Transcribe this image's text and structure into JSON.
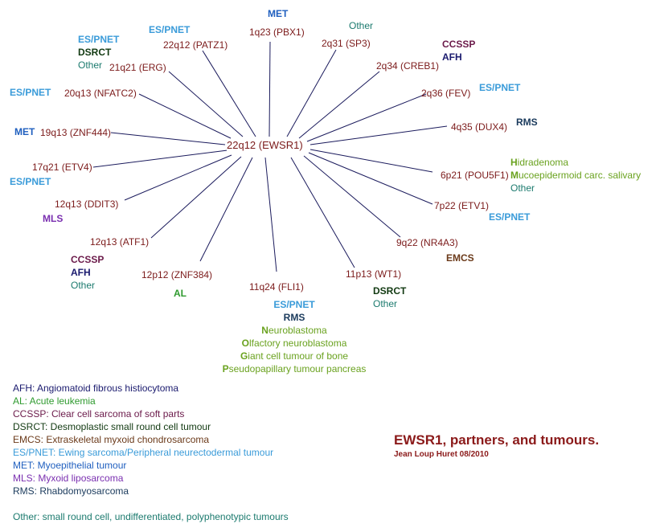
{
  "colors": {
    "MET": "#1f5fbf",
    "Other": "#1b7a6e",
    "ESPNET": "#3a9bd9",
    "DSRCT": "#123a12",
    "CCSSP": "#6b1a4a",
    "AFH": "#1a1a6e",
    "RMS": "#1a3a5c",
    "MLS": "#7a2fb0",
    "AL": "#2e9a2e",
    "EMCS": "#6b3a1a",
    "green": "#6aa21f",
    "gene": "#7b1a1a",
    "line": "#1a1a5c"
  },
  "center": "22q12 (EWSR1)",
  "partners": [
    {
      "id": "pbx1",
      "gene": "1q23 (PBX1)"
    },
    {
      "id": "sp3",
      "gene": "2q31 (SP3)"
    },
    {
      "id": "creb1",
      "gene": "2q34 (CREB1)"
    },
    {
      "id": "fev",
      "gene": "2q36 (FEV)"
    },
    {
      "id": "dux4",
      "gene": "4q35 (DUX4)"
    },
    {
      "id": "pou5f1",
      "gene": "6p21 (POU5F1)"
    },
    {
      "id": "etv1",
      "gene": "7p22 (ETV1)"
    },
    {
      "id": "nr4a3",
      "gene": "9q22 (NR4A3)"
    },
    {
      "id": "wt1",
      "gene": "11p13 (WT1)"
    },
    {
      "id": "fli1",
      "gene": "11q24 (FLI1)"
    },
    {
      "id": "znf384",
      "gene": "12p12 (ZNF384)"
    },
    {
      "id": "atf1",
      "gene": "12q13 (ATF1)"
    },
    {
      "id": "ddit3",
      "gene": "12q13 (DDIT3)"
    },
    {
      "id": "etv4",
      "gene": "17q21 (ETV4)"
    },
    {
      "id": "znf444",
      "gene": "19q13 (ZNF444)"
    },
    {
      "id": "nfatc2",
      "gene": "20q13 (NFATC2)"
    },
    {
      "id": "erg",
      "gene": "21q21 (ERG)"
    },
    {
      "id": "patz1",
      "gene": "22q12 (PATZ1)"
    }
  ],
  "tumours": {
    "pbx1": [
      "MET"
    ],
    "sp3": [
      "Other"
    ],
    "creb1": [
      "CCSSP",
      "AFH"
    ],
    "fev": [
      "ES/PNET"
    ],
    "dux4": [
      "RMS"
    ],
    "pou5f1": [
      {
        "initial": "H",
        "rest": "idradenoma"
      },
      {
        "initial": "M",
        "rest": "ucoepidermoid carc. salivary"
      },
      "Other"
    ],
    "etv1": [
      "ES/PNET"
    ],
    "nr4a3": [
      "EMCS"
    ],
    "wt1": [
      "DSRCT",
      "Other"
    ],
    "fli1": [
      "ES/PNET",
      "RMS",
      {
        "initial": "N",
        "rest": "euroblastoma"
      },
      {
        "initial": "O",
        "rest": "lfactory neuroblastoma"
      },
      {
        "initial": "G",
        "rest": "iant cell tumour of bone"
      },
      {
        "initial": "P",
        "rest": "seudopapillary tumour pancreas"
      }
    ],
    "znf384": [
      "AL"
    ],
    "atf1": [
      "CCSSP",
      "AFH",
      "Other"
    ],
    "ddit3": [
      "MLS"
    ],
    "etv4": [
      "ES/PNET"
    ],
    "znf444": [
      "MET"
    ],
    "nfatc2": [
      "ES/PNET"
    ],
    "erg": [
      "ES/PNET",
      "DSRCT",
      "Other"
    ],
    "patz1": [
      "ES/PNET"
    ]
  },
  "legend": [
    {
      "abbr": "AFH",
      "text": "AFH: Angiomatoid fibrous histiocytoma",
      "color": "#1a1a6e"
    },
    {
      "abbr": "AL",
      "text": "AL: Acute leukemia",
      "color": "#2e9a2e"
    },
    {
      "abbr": "CCSSP",
      "text": "CCSSP: Clear  cell sarcoma of soft parts",
      "color": "#6b1a4a"
    },
    {
      "abbr": "DSRCT",
      "text": "DSRCT: Desmoplastic small round cell tumour",
      "color": "#123a12"
    },
    {
      "abbr": "EMCS",
      "text": "EMCS: Extraskeletal myxoid chondrosarcoma",
      "color": "#6b3a1a"
    },
    {
      "abbr": "ES/PNET",
      "text": "ES/PNET: Ewing sarcoma/Peripheral neurectodermal tumour",
      "color": "#3a9bd9"
    },
    {
      "abbr": "MET",
      "text": "MET: Myoepithelial tumour",
      "color": "#1f5fbf"
    },
    {
      "abbr": "MLS",
      "text": "MLS: Myxoid liposarcoma",
      "color": "#7a2fb0"
    },
    {
      "abbr": "RMS",
      "text": "RMS: Rhabdomyosarcoma",
      "color": "#1a3a5c"
    }
  ],
  "legend_other": "Other: small round cell, undifferentiated, polyphenotypic tumours",
  "title": "EWSR1, partners, and tumours.",
  "author": "Jean Loup Huret 08/2010"
}
